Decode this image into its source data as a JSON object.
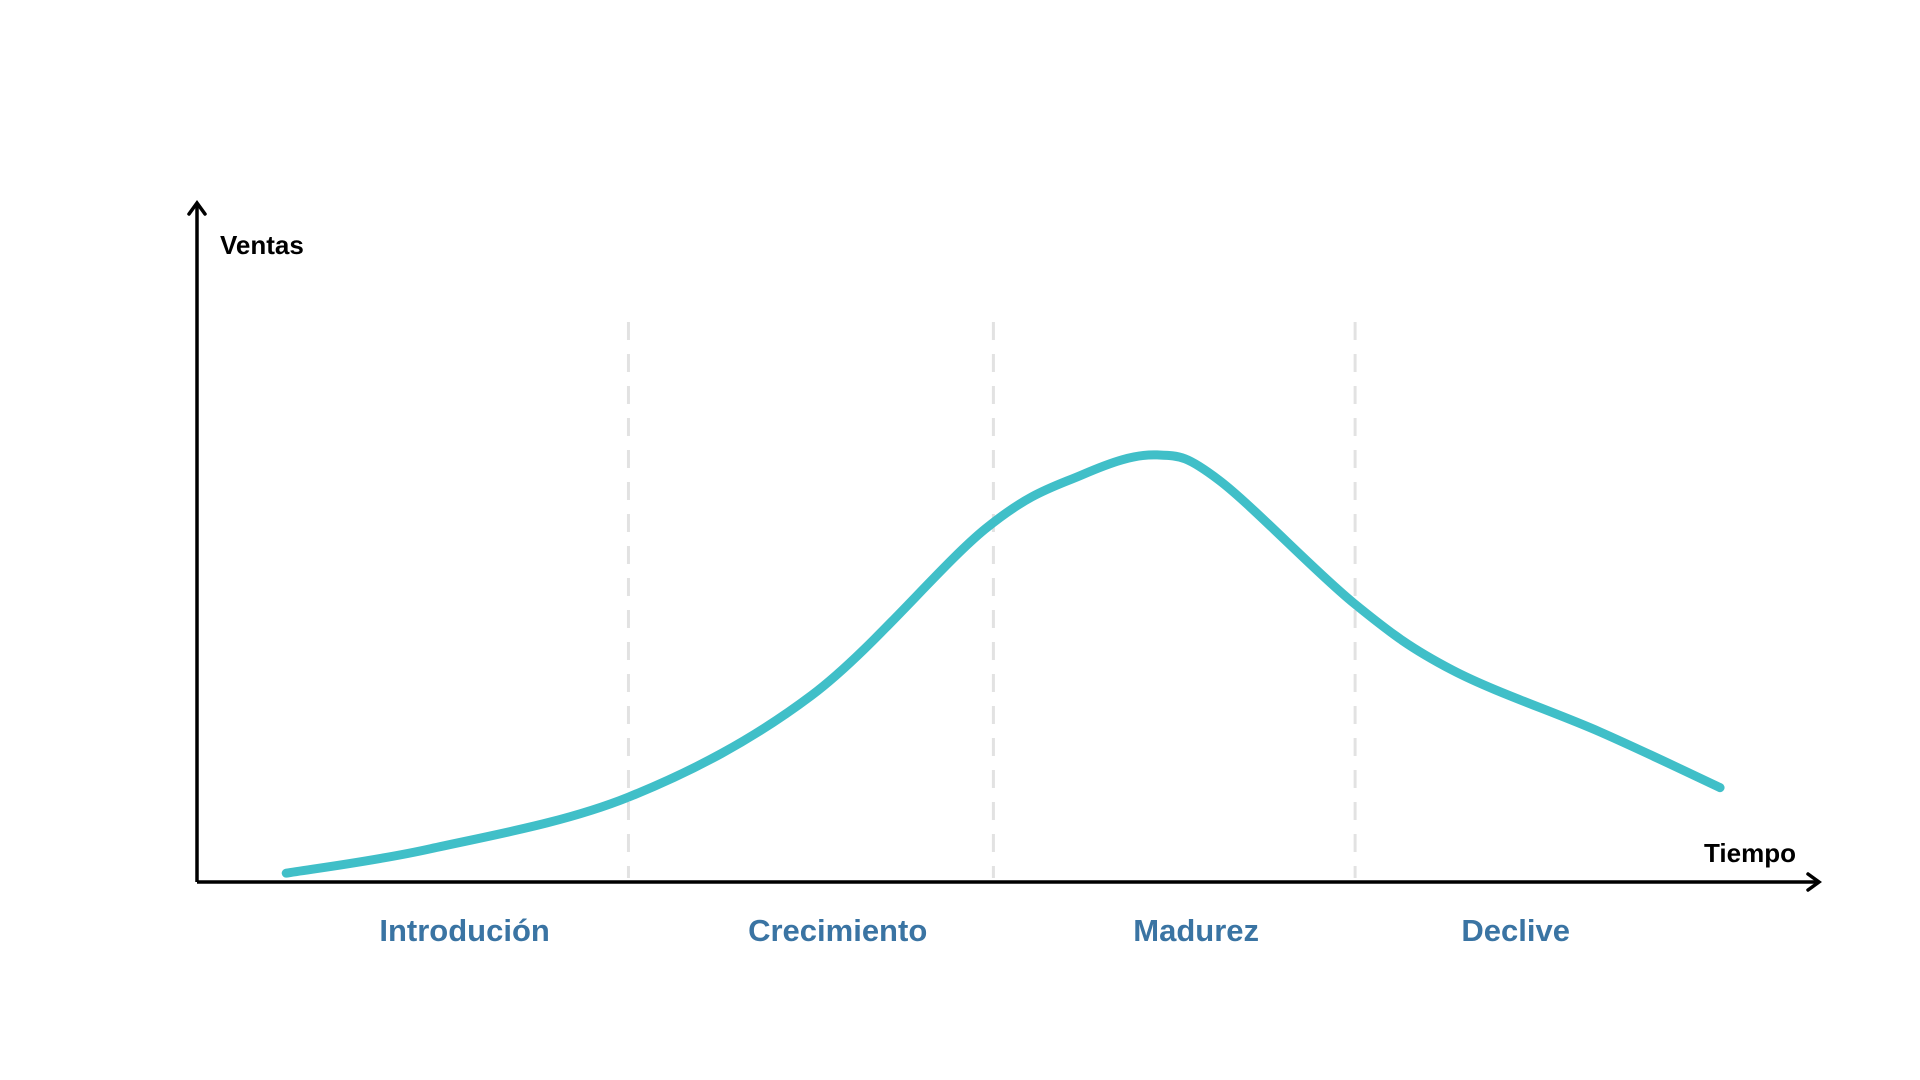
{
  "chart_data": {
    "type": "line",
    "title": "",
    "xlabel": "Tiempo",
    "ylabel": "Ventas",
    "xlim": [
      0,
      100
    ],
    "ylim": [
      0,
      100
    ],
    "grid": false,
    "stages": [
      {
        "label": "Introdución",
        "center": 16.5
      },
      {
        "label": "Crecimiento",
        "center": 39.5
      },
      {
        "label": "Madurez",
        "center": 61.6
      },
      {
        "label": "Declive",
        "center": 81.3
      }
    ],
    "stage_boundaries": [
      26.6,
      49.1,
      71.4
    ],
    "series": [
      {
        "name": "Ventas",
        "color": "#40bfc8",
        "x": [
          5.5,
          14.4,
          26.6,
          37.9,
          48.6,
          54.6,
          59.2,
          63.0,
          71.3,
          77.4,
          86.5,
          93.9
        ],
        "y": [
          1.3,
          4.9,
          12.5,
          27.5,
          52.0,
          60.0,
          62.9,
          59.2,
          41.1,
          31.2,
          22.1,
          13.9
        ]
      }
    ]
  }
}
